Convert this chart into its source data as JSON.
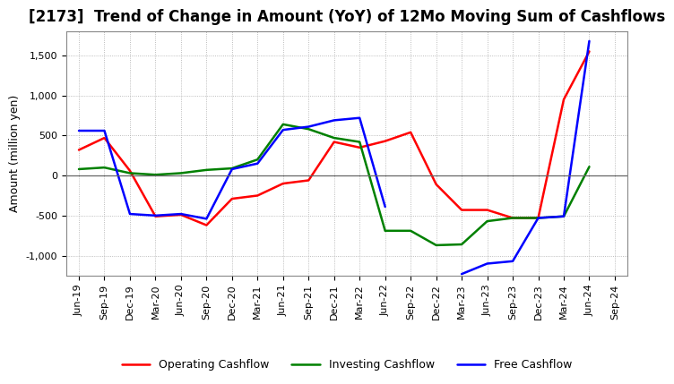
{
  "title": "[2173]  Trend of Change in Amount (YoY) of 12Mo Moving Sum of Cashflows",
  "ylabel": "Amount (million yen)",
  "x_labels": [
    "Jun-19",
    "Sep-19",
    "Dec-19",
    "Mar-20",
    "Jun-20",
    "Sep-20",
    "Dec-20",
    "Mar-21",
    "Jun-21",
    "Sep-21",
    "Dec-21",
    "Mar-22",
    "Jun-22",
    "Sep-22",
    "Dec-22",
    "Mar-23",
    "Jun-23",
    "Sep-23",
    "Dec-23",
    "Mar-24",
    "Jun-24",
    "Sep-24"
  ],
  "operating": [
    320,
    470,
    60,
    -510,
    -490,
    -620,
    -290,
    -250,
    -100,
    -60,
    420,
    350,
    430,
    540,
    -110,
    -430,
    -430,
    -530,
    -530,
    950,
    1550,
    null
  ],
  "investing": [
    80,
    100,
    30,
    10,
    30,
    70,
    90,
    200,
    640,
    580,
    470,
    420,
    -690,
    -690,
    -870,
    -860,
    -570,
    -530,
    -530,
    -510,
    110,
    null
  ],
  "free": [
    560,
    560,
    -480,
    -500,
    -480,
    -540,
    80,
    150,
    570,
    610,
    690,
    720,
    -390,
    null,
    null,
    -1230,
    -1100,
    -1070,
    -530,
    -510,
    1680,
    null
  ],
  "operating_color": "#ff0000",
  "investing_color": "#008000",
  "free_color": "#0000ff",
  "ylim": [
    -1250,
    1800
  ],
  "yticks": [
    -1000,
    -500,
    0,
    500,
    1000,
    1500
  ],
  "background_color": "#ffffff",
  "grid_color": "#aaaaaa",
  "title_fontsize": 12,
  "axis_label_fontsize": 9,
  "tick_fontsize": 8,
  "legend_fontsize": 9
}
